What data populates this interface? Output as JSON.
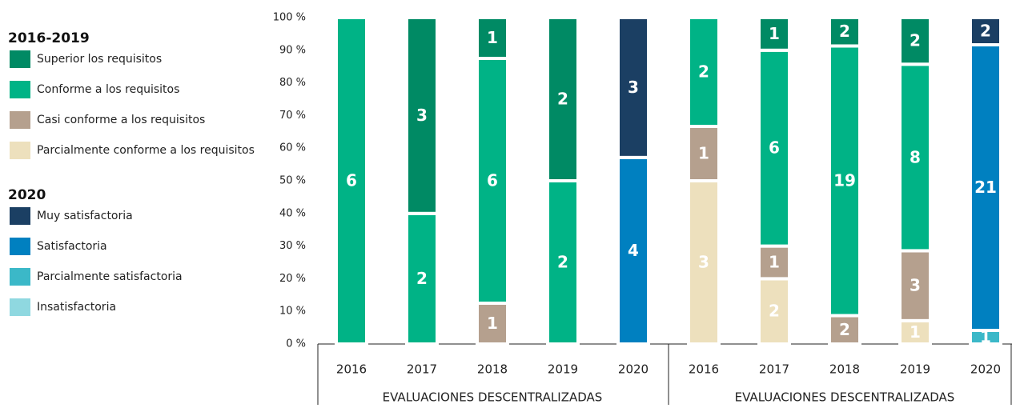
{
  "chart_data": {
    "type": "stacked_percent_bar",
    "legend_titles": [
      "2016-2019",
      "2020"
    ],
    "categories": [
      "2016",
      "2017",
      "2018",
      "2019",
      "2020",
      "2016",
      "2017",
      "2018",
      "2019",
      "2020"
    ],
    "groups": [
      "EVALUACIONES DESCENTRALIZADAS",
      "EVALUACIONES DESCENTRALIZADAS"
    ],
    "series": [
      {
        "name": "Superior los requisitos",
        "color": "#008a64",
        "values": [
          null,
          3,
          1,
          2,
          null,
          null,
          1,
          2,
          2,
          null
        ]
      },
      {
        "name": "Conforme a los requisitos",
        "color": "#00b386",
        "values": [
          6,
          2,
          6,
          2,
          null,
          2,
          6,
          19,
          8,
          null
        ]
      },
      {
        "name": "Casi conforme a los requisitos",
        "color": "#b5a08e",
        "values": [
          null,
          null,
          1,
          null,
          null,
          1,
          1,
          2,
          3,
          null
        ]
      },
      {
        "name": "Parcialmente conforme a los requisitos",
        "color": "#ede0bd",
        "values": [
          null,
          null,
          null,
          null,
          null,
          3,
          2,
          null,
          1,
          null
        ]
      },
      {
        "name": "Muy satisfactoria",
        "color": "#1b3f63",
        "values": [
          null,
          null,
          null,
          null,
          3,
          null,
          null,
          null,
          null,
          2
        ]
      },
      {
        "name": "Satisfactoria",
        "color": "#0080c0",
        "values": [
          null,
          null,
          null,
          null,
          4,
          null,
          null,
          null,
          null,
          21
        ]
      },
      {
        "name": "Parcialmente satisfactoria",
        "color": "#3bb8c8",
        "values": [
          null,
          null,
          null,
          null,
          null,
          null,
          null,
          null,
          null,
          1
        ]
      },
      {
        "name": "Insatisfactoria",
        "color": "#8fd8e0",
        "values": [
          null,
          null,
          null,
          null,
          null,
          null,
          null,
          null,
          null,
          null
        ]
      }
    ],
    "ylim": [
      0,
      100
    ],
    "yticks": [
      {
        "value": 0,
        "label": "0 %"
      },
      {
        "value": 10,
        "label": "10 %"
      },
      {
        "value": 20,
        "label": "20 %"
      },
      {
        "value": 30,
        "label": "30 %"
      },
      {
        "value": 40,
        "label": "40 %"
      },
      {
        "value": 50,
        "label": "50 %"
      },
      {
        "value": 60,
        "label": "60 %"
      },
      {
        "value": 70,
        "label": "70 %"
      },
      {
        "value": 80,
        "label": "80 %"
      },
      {
        "value": 90,
        "label": "90 %"
      },
      {
        "value": 100,
        "label": "100 %"
      }
    ]
  }
}
